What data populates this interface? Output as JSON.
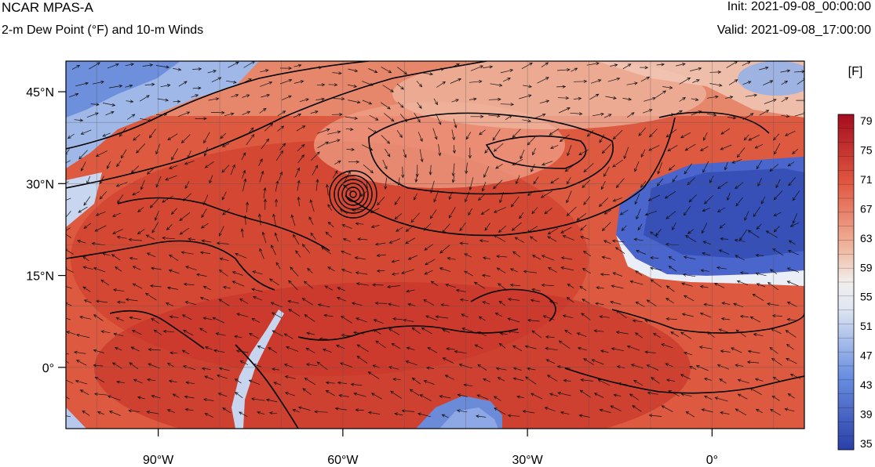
{
  "header": {
    "title": "NCAR MPAS-A",
    "subtitle": "2-m Dew Point (°F) and 10-m Winds",
    "init": "Init: 2021-09-08_00:00:00",
    "valid": "Valid: 2021-09-08_17:00:00"
  },
  "map": {
    "lon_range": [
      -105,
      15
    ],
    "lat_range": [
      -10,
      50
    ],
    "lon_ticks": [
      {
        "lon": -90,
        "label": "90°W"
      },
      {
        "lon": -60,
        "label": "60°W"
      },
      {
        "lon": -30,
        "label": "30°W"
      },
      {
        "lon": 0,
        "label": "0°"
      }
    ],
    "lat_ticks": [
      {
        "lat": 45,
        "label": "45°N"
      },
      {
        "lat": 30,
        "label": "30°N"
      },
      {
        "lat": 15,
        "label": "15°N"
      },
      {
        "lat": 0,
        "label": "0°"
      }
    ],
    "grid_spacing_deg": 10,
    "hurricane_center": {
      "lon": -58,
      "lat": 30
    }
  },
  "colorbar": {
    "unit_label": "[F]",
    "levels": [
      35,
      39,
      43,
      47,
      51,
      55,
      59,
      63,
      67,
      71,
      75,
      79
    ],
    "low_color": "#2a3fa8",
    "mid_color": "#f2f2f2",
    "high_color": "#a40d1f"
  }
}
